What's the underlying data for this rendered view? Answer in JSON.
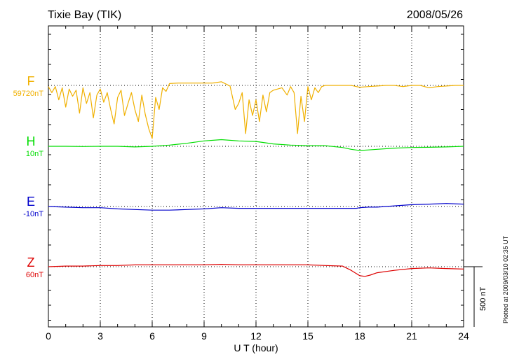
{
  "chart_data": {
    "type": "line",
    "title": "Tixie Bay (TIK)",
    "date": "2008/05/26",
    "xlabel": "U T (hour)",
    "xlim": [
      0,
      24
    ],
    "xticks": [
      "0",
      "3",
      "6",
      "9",
      "12",
      "15",
      "18",
      "21",
      "24"
    ],
    "scale_label": "500 nT",
    "footer": "Plotted at 2009/03/10 02:35 UT",
    "colors": {
      "F": "#f0b000",
      "H": "#00dd00",
      "E": "#0000cc",
      "Z": "#dd0000"
    },
    "series": [
      {
        "name": "F",
        "baseline_label": "59720nT",
        "x": [
          0,
          0.2,
          0.4,
          0.6,
          0.8,
          1,
          1.2,
          1.4,
          1.6,
          1.8,
          2,
          2.2,
          2.4,
          2.6,
          2.8,
          3,
          3.2,
          3.4,
          3.6,
          3.8,
          4,
          4.2,
          4.4,
          4.6,
          4.8,
          5,
          5.2,
          5.4,
          5.6,
          5.8,
          6,
          6.2,
          6.4,
          6.6,
          6.8,
          7,
          7.5,
          8,
          8.5,
          9,
          9.5,
          10,
          10.5,
          10.8,
          11,
          11.2,
          11.4,
          11.6,
          11.8,
          12,
          12.2,
          12.4,
          12.6,
          12.8,
          13,
          13.5,
          13.8,
          14,
          14.2,
          14.4,
          14.6,
          14.8,
          15,
          15.2,
          15.4,
          15.6,
          15.8,
          16,
          16.5,
          17,
          17.5,
          17.8,
          18,
          18.5,
          19,
          19.5,
          20,
          20.5,
          21,
          21.5,
          22,
          22.5,
          23,
          23.5,
          24
        ],
        "values": [
          -10,
          -60,
          -10,
          -120,
          -20,
          -180,
          -30,
          -90,
          -40,
          -230,
          -20,
          -150,
          -60,
          -270,
          -80,
          -30,
          -140,
          -60,
          -200,
          -320,
          -100,
          -40,
          -250,
          -150,
          -60,
          -200,
          -300,
          -80,
          -240,
          -360,
          -440,
          -100,
          -200,
          -20,
          -50,
          15,
          20,
          20,
          20,
          20,
          20,
          30,
          -5,
          -200,
          -150,
          -60,
          -400,
          -120,
          -250,
          -120,
          -300,
          -80,
          -220,
          -60,
          -40,
          -20,
          -80,
          -10,
          -60,
          -400,
          -90,
          -300,
          -10,
          -120,
          -20,
          -60,
          -10,
          0,
          0,
          0,
          0,
          -10,
          -15,
          -10,
          -5,
          0,
          0,
          -10,
          0,
          0,
          -20,
          -10,
          -5,
          0,
          0
        ]
      },
      {
        "name": "H",
        "baseline_label": "10nT",
        "x": [
          0,
          1,
          2,
          3,
          4,
          5,
          6,
          7,
          8,
          9,
          10,
          11,
          12,
          13,
          14,
          15,
          16,
          17,
          17.5,
          18,
          18.5,
          19,
          20,
          21,
          22,
          23,
          24
        ],
        "values": [
          0,
          0,
          -2,
          0,
          0,
          -5,
          0,
          10,
          25,
          45,
          55,
          45,
          40,
          20,
          10,
          5,
          5,
          -10,
          -25,
          -35,
          -30,
          -25,
          -15,
          -10,
          -8,
          -5,
          0
        ]
      },
      {
        "name": "E",
        "baseline_label": "-10nT",
        "x": [
          0,
          1,
          2,
          3,
          4,
          5,
          6,
          7,
          8,
          9,
          10,
          11,
          12,
          13,
          14,
          15,
          16,
          17,
          17.8,
          18,
          18.5,
          19,
          20,
          21,
          22,
          23,
          24
        ],
        "values": [
          0,
          -5,
          -10,
          -10,
          -20,
          -25,
          -30,
          -30,
          -25,
          -20,
          -10,
          -15,
          -15,
          -15,
          -15,
          -15,
          -15,
          -15,
          -15,
          -10,
          -5,
          -5,
          5,
          15,
          20,
          25,
          20
        ]
      },
      {
        "name": "Z",
        "baseline_label": "60nT",
        "x": [
          0,
          1,
          2,
          3,
          4,
          5,
          6,
          7,
          8,
          9,
          10,
          11,
          12,
          13,
          14,
          15,
          16,
          17,
          17.5,
          18,
          18.3,
          18.6,
          19,
          20,
          21,
          22,
          23,
          24
        ],
        "values": [
          0,
          5,
          5,
          10,
          10,
          15,
          15,
          15,
          15,
          15,
          20,
          15,
          15,
          15,
          15,
          15,
          10,
          5,
          -30,
          -75,
          -80,
          -70,
          -50,
          -30,
          -15,
          -10,
          -15,
          -20
        ]
      }
    ]
  }
}
